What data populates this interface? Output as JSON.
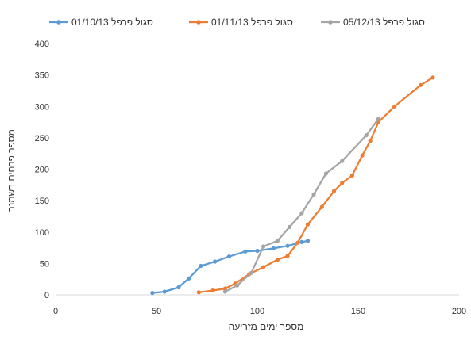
{
  "chart_data": {
    "type": "scatter",
    "xlabel": "מספר ימים מזריעה",
    "ylabel": "מספר פרחים בשמנר",
    "xlim": [
      0,
      200
    ],
    "ylim": [
      0,
      400
    ],
    "x_ticks": [
      "0",
      "50",
      "100",
      "150",
      "200"
    ],
    "y_ticks": [
      "0",
      "50",
      "100",
      "150",
      "200",
      "250",
      "300",
      "350",
      "400"
    ],
    "grid": false,
    "legend_position": "top",
    "series": [
      {
        "name": "סגול פרפל 01/10/13",
        "color": "#5b9bd5",
        "points": [
          [
            48,
            3
          ],
          [
            54,
            5
          ],
          [
            61,
            12
          ],
          [
            66,
            26
          ],
          [
            72,
            46
          ],
          [
            79,
            53
          ],
          [
            86,
            61
          ],
          [
            94,
            69
          ],
          [
            100,
            70
          ],
          [
            108,
            74
          ],
          [
            115,
            78
          ],
          [
            122,
            84
          ],
          [
            125,
            86
          ]
        ]
      },
      {
        "name": "סגול פרפל 01/11/13",
        "color": "#ed7d31",
        "points": [
          [
            71,
            4
          ],
          [
            78,
            7
          ],
          [
            84,
            10
          ],
          [
            89,
            18
          ],
          [
            96,
            33
          ],
          [
            103,
            44
          ],
          [
            110,
            56
          ],
          [
            115,
            62
          ],
          [
            120,
            83
          ],
          [
            125,
            112
          ],
          [
            132,
            140
          ],
          [
            138,
            165
          ],
          [
            142,
            178
          ],
          [
            147,
            190
          ],
          [
            152,
            222
          ],
          [
            156,
            245
          ],
          [
            160,
            275
          ],
          [
            168,
            300
          ],
          [
            181,
            334
          ],
          [
            187,
            346
          ]
        ]
      },
      {
        "name": "סגול פרפל 05/12/13",
        "color": "#a5a5a5",
        "points": [
          [
            84,
            5
          ],
          [
            90,
            15
          ],
          [
            97,
            35
          ],
          [
            103,
            77
          ],
          [
            110,
            86
          ],
          [
            116,
            108
          ],
          [
            122,
            130
          ],
          [
            128,
            160
          ],
          [
            134,
            193
          ],
          [
            142,
            213
          ],
          [
            154,
            254
          ],
          [
            160,
            280
          ]
        ]
      }
    ]
  }
}
